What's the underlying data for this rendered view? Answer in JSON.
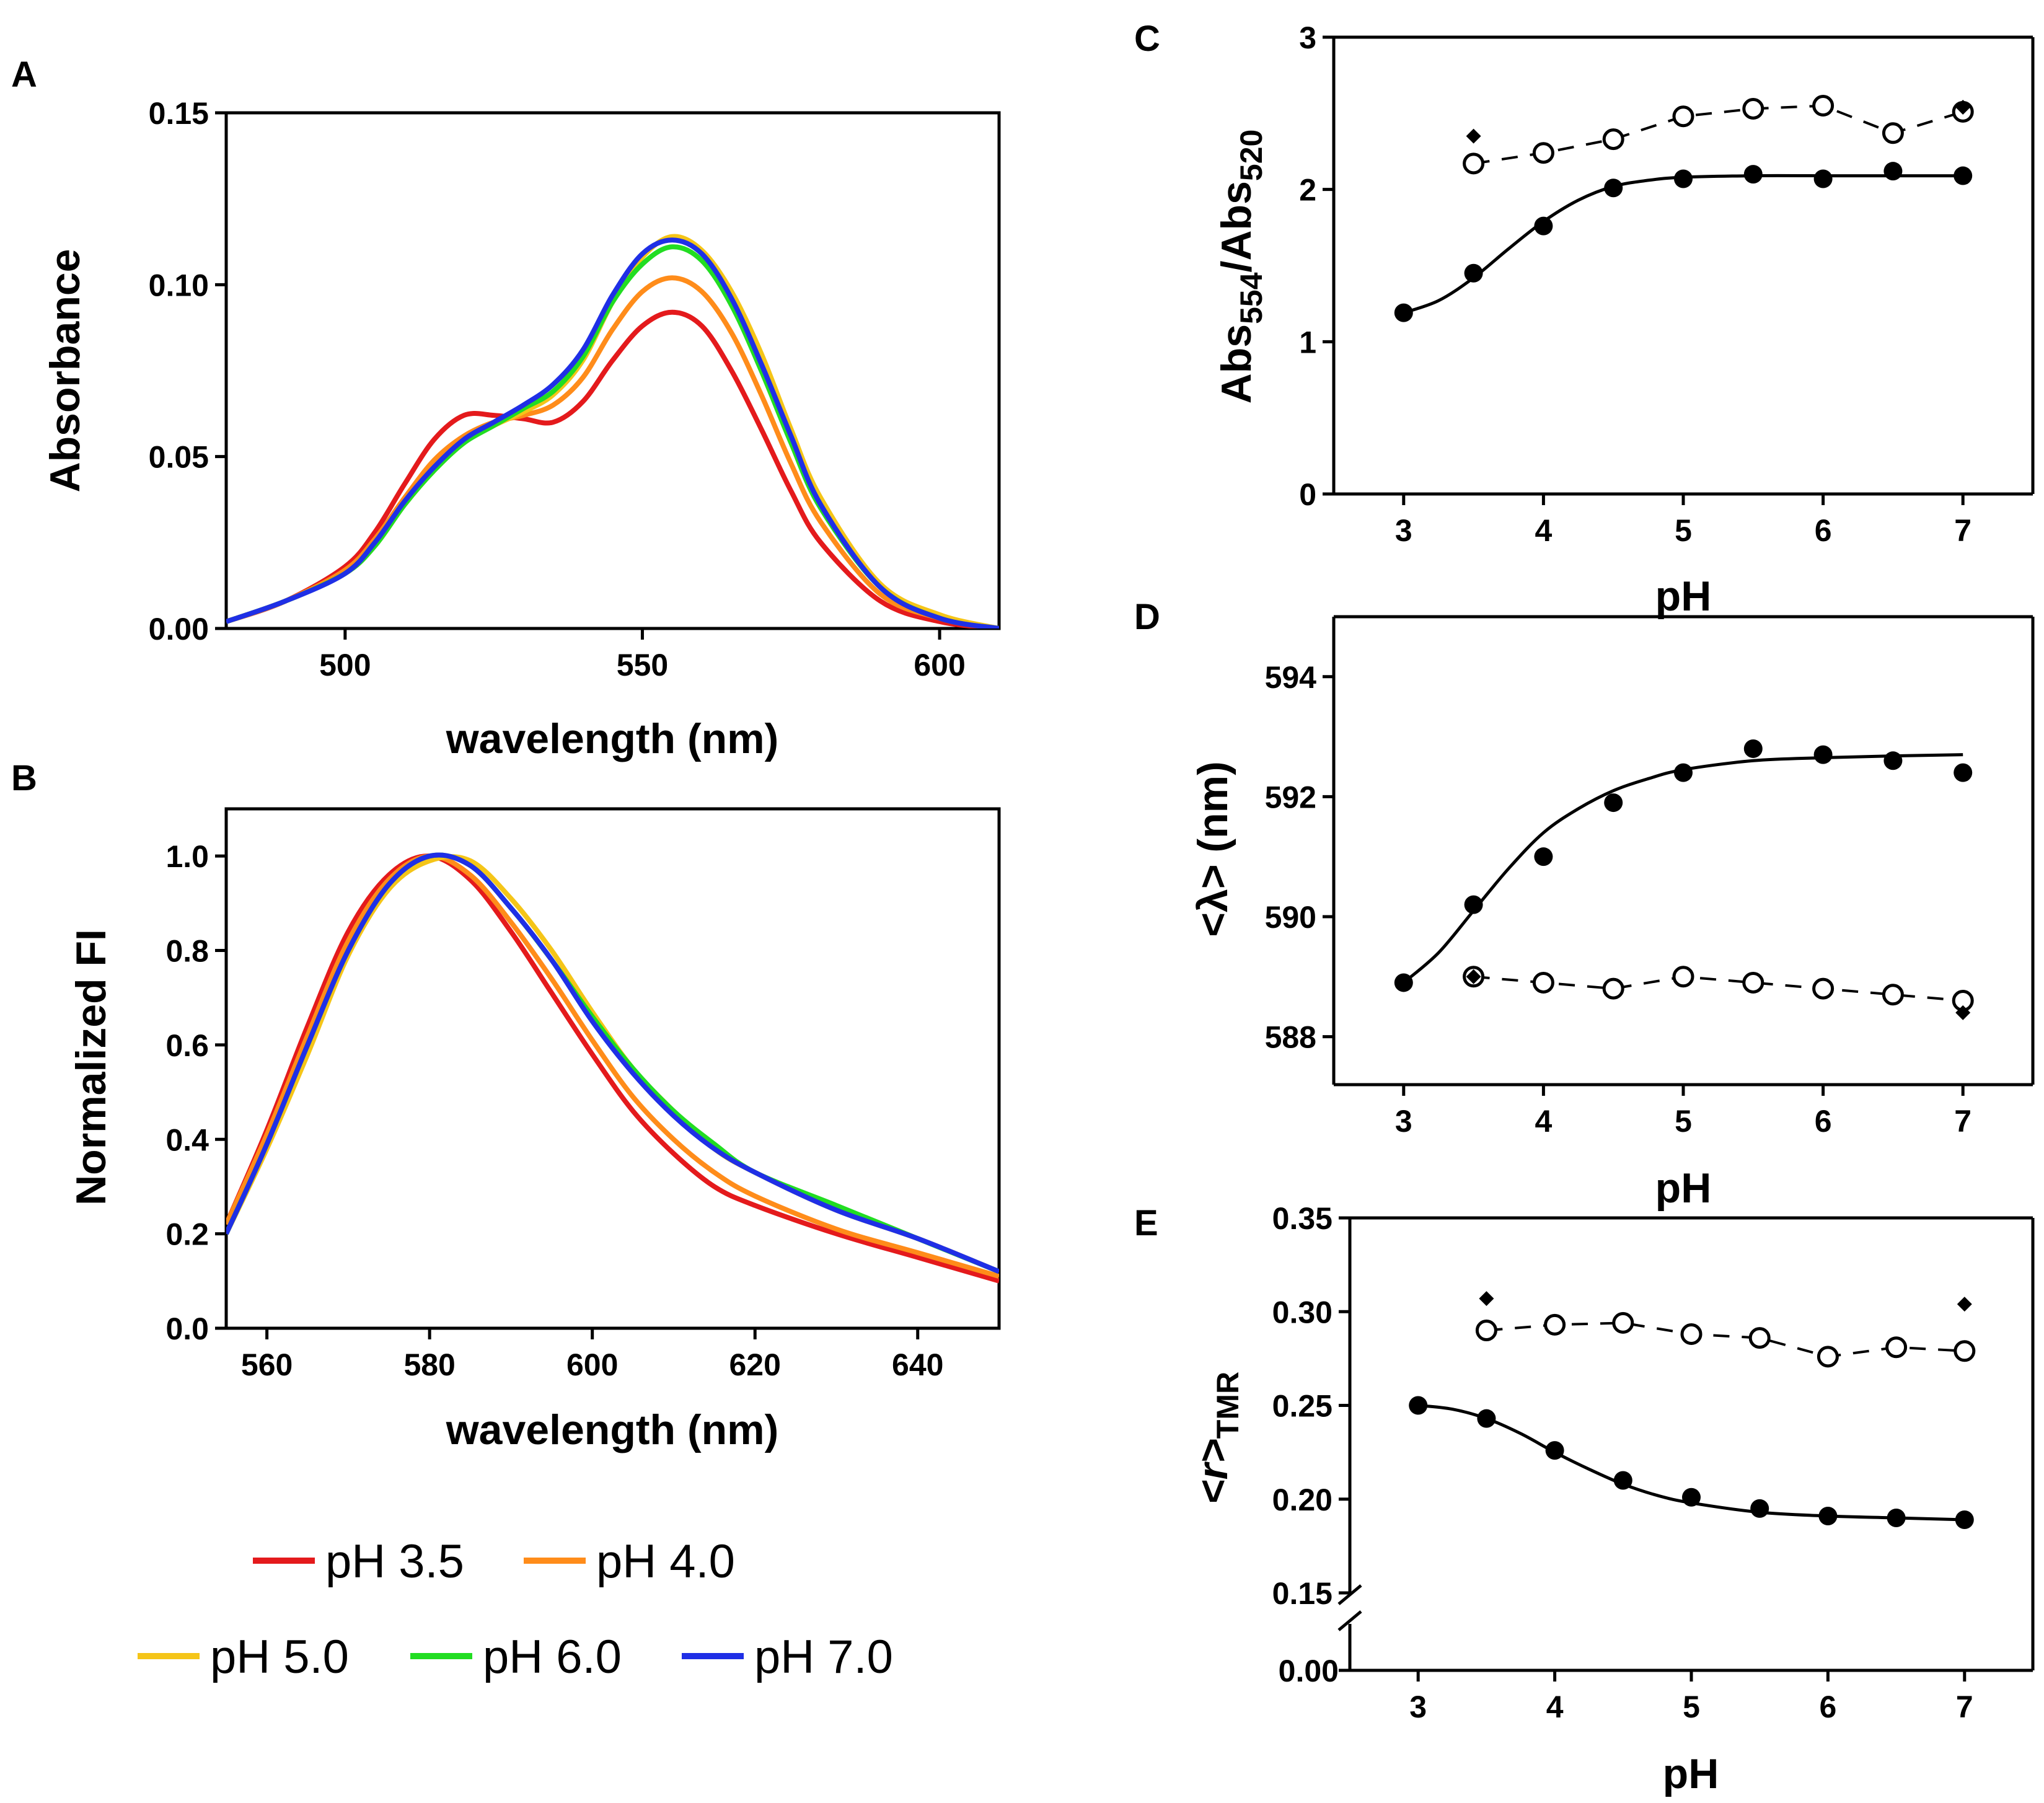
{
  "chart_data": [
    {
      "id": "A",
      "panel_label": "A",
      "type": "line",
      "xlabel": "wavelength (nm)",
      "ylabel": "Absorbance",
      "xlim": [
        480,
        610
      ],
      "ylim": [
        0,
        0.15
      ],
      "xticks": [
        500,
        550,
        600
      ],
      "xtick_labels": [
        "500",
        "550",
        "600"
      ],
      "yticks": [
        0,
        0.05,
        0.1,
        0.15
      ],
      "ytick_labels": [
        "0.00",
        "0.05",
        "0.10",
        "0.15"
      ],
      "series": [
        {
          "name": "pH 3.5",
          "color": "#e41a1c",
          "x": [
            480,
            490,
            500,
            505,
            510,
            515,
            520,
            525,
            530,
            535,
            540,
            545,
            550,
            555,
            560,
            565,
            570,
            575,
            580,
            590,
            600,
            610
          ],
          "y": [
            0.002,
            0.008,
            0.018,
            0.028,
            0.042,
            0.055,
            0.062,
            0.062,
            0.061,
            0.06,
            0.066,
            0.078,
            0.088,
            0.092,
            0.088,
            0.075,
            0.058,
            0.04,
            0.025,
            0.008,
            0.002,
            0.0
          ]
        },
        {
          "name": "pH 4.0",
          "color": "#ff8c1a",
          "x": [
            480,
            490,
            500,
            505,
            510,
            515,
            520,
            525,
            530,
            535,
            540,
            545,
            550,
            555,
            560,
            565,
            570,
            575,
            580,
            590,
            600,
            610
          ],
          "y": [
            0.002,
            0.008,
            0.017,
            0.026,
            0.038,
            0.049,
            0.056,
            0.06,
            0.062,
            0.065,
            0.073,
            0.087,
            0.098,
            0.102,
            0.098,
            0.086,
            0.068,
            0.048,
            0.031,
            0.01,
            0.003,
            0.0
          ]
        },
        {
          "name": "pH 5.0",
          "color": "#f5c518",
          "x": [
            480,
            490,
            500,
            505,
            510,
            515,
            520,
            525,
            530,
            535,
            540,
            545,
            550,
            555,
            560,
            565,
            570,
            575,
            580,
            590,
            600,
            610
          ],
          "y": [
            0.002,
            0.008,
            0.016,
            0.024,
            0.036,
            0.046,
            0.054,
            0.059,
            0.063,
            0.068,
            0.078,
            0.095,
            0.108,
            0.114,
            0.11,
            0.098,
            0.08,
            0.058,
            0.038,
            0.013,
            0.004,
            0.0
          ]
        },
        {
          "name": "pH 6.0",
          "color": "#22dd22",
          "x": [
            480,
            490,
            500,
            505,
            510,
            515,
            520,
            525,
            530,
            535,
            540,
            545,
            550,
            555,
            560,
            565,
            570,
            575,
            580,
            590,
            600,
            610
          ],
          "y": [
            0.002,
            0.008,
            0.016,
            0.024,
            0.036,
            0.046,
            0.054,
            0.059,
            0.064,
            0.069,
            0.079,
            0.095,
            0.106,
            0.111,
            0.107,
            0.094,
            0.075,
            0.054,
            0.035,
            0.012,
            0.003,
            0.0
          ]
        },
        {
          "name": "pH 7.0",
          "color": "#1f2fe6",
          "x": [
            480,
            490,
            500,
            505,
            510,
            515,
            520,
            525,
            530,
            535,
            540,
            545,
            550,
            555,
            560,
            565,
            570,
            575,
            580,
            590,
            600,
            610
          ],
          "y": [
            0.002,
            0.008,
            0.016,
            0.025,
            0.037,
            0.047,
            0.055,
            0.06,
            0.065,
            0.071,
            0.081,
            0.097,
            0.109,
            0.113,
            0.109,
            0.096,
            0.077,
            0.056,
            0.036,
            0.012,
            0.003,
            0.0
          ]
        }
      ]
    },
    {
      "id": "B",
      "panel_label": "B",
      "type": "line",
      "xlabel": "wavelength (nm)",
      "ylabel": "Normalized FI",
      "xlim": [
        555,
        650
      ],
      "ylim": [
        0,
        1.1
      ],
      "xticks": [
        560,
        580,
        600,
        620,
        640
      ],
      "xtick_labels": [
        "560",
        "580",
        "600",
        "620",
        "640"
      ],
      "yticks": [
        0,
        0.2,
        0.4,
        0.6,
        0.8,
        1.0
      ],
      "ytick_labels": [
        "0.0",
        "0.2",
        "0.4",
        "0.6",
        "0.8",
        "1.0"
      ],
      "series": [
        {
          "name": "pH 3.5",
          "color": "#e41a1c",
          "x": [
            555,
            560,
            565,
            570,
            575,
            580,
            585,
            590,
            595,
            600,
            605,
            610,
            615,
            620,
            630,
            640,
            650
          ],
          "y": [
            0.22,
            0.42,
            0.64,
            0.84,
            0.96,
            1.0,
            0.95,
            0.84,
            0.71,
            0.58,
            0.46,
            0.37,
            0.3,
            0.26,
            0.2,
            0.15,
            0.1
          ]
        },
        {
          "name": "pH 4.0",
          "color": "#ff8c1a",
          "x": [
            555,
            560,
            565,
            570,
            575,
            580,
            585,
            590,
            595,
            600,
            605,
            610,
            615,
            620,
            630,
            640,
            650
          ],
          "y": [
            0.22,
            0.41,
            0.62,
            0.82,
            0.95,
            1.0,
            0.96,
            0.86,
            0.74,
            0.61,
            0.49,
            0.4,
            0.33,
            0.28,
            0.21,
            0.16,
            0.11
          ]
        },
        {
          "name": "pH 5.0",
          "color": "#f5c518",
          "x": [
            555,
            560,
            565,
            570,
            575,
            580,
            585,
            590,
            595,
            600,
            605,
            610,
            615,
            620,
            630,
            640,
            650
          ],
          "y": [
            0.2,
            0.38,
            0.58,
            0.79,
            0.93,
            0.99,
            0.99,
            0.91,
            0.8,
            0.67,
            0.55,
            0.46,
            0.38,
            0.33,
            0.25,
            0.19,
            0.12
          ]
        },
        {
          "name": "pH 6.0",
          "color": "#22dd22",
          "x": [
            555,
            560,
            565,
            570,
            575,
            580,
            585,
            590,
            595,
            600,
            605,
            610,
            615,
            620,
            630,
            640,
            650
          ],
          "y": [
            0.2,
            0.39,
            0.6,
            0.8,
            0.94,
            1.0,
            0.98,
            0.89,
            0.78,
            0.66,
            0.55,
            0.46,
            0.39,
            0.33,
            0.26,
            0.19,
            0.12
          ]
        },
        {
          "name": "pH 7.0",
          "color": "#1f2fe6",
          "x": [
            555,
            560,
            565,
            570,
            575,
            580,
            585,
            590,
            595,
            600,
            605,
            610,
            615,
            620,
            630,
            640,
            650
          ],
          "y": [
            0.2,
            0.39,
            0.6,
            0.8,
            0.94,
            1.0,
            0.98,
            0.89,
            0.78,
            0.65,
            0.54,
            0.45,
            0.38,
            0.33,
            0.25,
            0.19,
            0.12
          ]
        }
      ]
    },
    {
      "id": "C",
      "panel_label": "C",
      "type": "scatter",
      "xlabel": "pH",
      "ylabel_main": "Abs",
      "ylabel_sub1": "554",
      "ylabel_mid": "/Abs",
      "ylabel_sub2": "520",
      "xlim": [
        2.5,
        7.5
      ],
      "ylim": [
        0,
        3
      ],
      "xticks": [
        3,
        4,
        5,
        6,
        7
      ],
      "xtick_labels": [
        "3",
        "4",
        "5",
        "6",
        "7"
      ],
      "yticks": [
        0,
        1,
        2,
        3
      ],
      "ytick_labels": [
        "0",
        "1",
        "2",
        "3"
      ],
      "filled": {
        "x": [
          3,
          3.5,
          4,
          4.5,
          5,
          5.5,
          6,
          6.5,
          7
        ],
        "y": [
          1.19,
          1.45,
          1.76,
          2.01,
          2.07,
          2.1,
          2.07,
          2.12,
          2.09
        ]
      },
      "open": {
        "x": [
          3.5,
          4,
          4.5,
          5,
          5.5,
          6,
          6.5,
          7
        ],
        "y": [
          2.17,
          2.24,
          2.33,
          2.48,
          2.53,
          2.55,
          2.37,
          2.51
        ]
      },
      "diamond": {
        "x": [
          3.5,
          7
        ],
        "y": [
          2.35,
          2.54
        ]
      },
      "fit": {
        "x": [
          3,
          3.25,
          3.5,
          3.75,
          4,
          4.25,
          4.5,
          4.75,
          5,
          5.5,
          6,
          6.5,
          7
        ],
        "y": [
          1.19,
          1.27,
          1.42,
          1.61,
          1.79,
          1.93,
          2.02,
          2.06,
          2.08,
          2.09,
          2.09,
          2.09,
          2.09
        ]
      }
    },
    {
      "id": "D",
      "panel_label": "D",
      "type": "scatter",
      "xlabel": "pH",
      "ylabel": "<λ> (nm)",
      "xlim": [
        2.5,
        7.5
      ],
      "ylim": [
        587.2,
        595
      ],
      "xticks": [
        3,
        4,
        5,
        6,
        7
      ],
      "xtick_labels": [
        "3",
        "4",
        "5",
        "6",
        "7"
      ],
      "yticks": [
        588,
        590,
        592,
        594
      ],
      "ytick_labels": [
        "588",
        "590",
        "592",
        "594"
      ],
      "filled": {
        "x": [
          3,
          3.5,
          4,
          4.5,
          5,
          5.5,
          6,
          6.5,
          7
        ],
        "y": [
          588.9,
          590.2,
          591.0,
          591.9,
          592.4,
          592.8,
          592.7,
          592.6,
          592.4
        ]
      },
      "open": {
        "x": [
          3.5,
          4,
          4.5,
          5,
          5.5,
          6,
          6.5,
          7
        ],
        "y": [
          589.0,
          588.9,
          588.8,
          589.0,
          588.9,
          588.8,
          588.7,
          588.6
        ]
      },
      "diamond": {
        "x": [
          3.5,
          7
        ],
        "y": [
          589.0,
          588.4
        ]
      },
      "fit": {
        "x": [
          3,
          3.25,
          3.5,
          3.75,
          4,
          4.25,
          4.5,
          4.75,
          5,
          5.5,
          6,
          6.5,
          7
        ],
        "y": [
          588.9,
          589.4,
          590.1,
          590.8,
          591.4,
          591.8,
          592.1,
          592.3,
          592.45,
          592.6,
          592.65,
          592.68,
          592.7
        ]
      }
    },
    {
      "id": "E",
      "panel_label": "E",
      "type": "scatter",
      "xlabel": "pH",
      "ylabel_main": "<r>",
      "ylabel_sub": "TMR",
      "xlim": [
        2.5,
        7.5
      ],
      "ylim": [
        0.15,
        0.35
      ],
      "axis_break": true,
      "xticks": [
        3,
        4,
        5,
        6,
        7
      ],
      "xtick_labels": [
        "3",
        "4",
        "5",
        "6",
        "7"
      ],
      "yticks": [
        0.15,
        0.2,
        0.25,
        0.3,
        0.35
      ],
      "ytick_labels": [
        "0.15",
        "0.20",
        "0.25",
        "0.30",
        "0.35"
      ],
      "ybreak_label": "0.00",
      "filled": {
        "x": [
          3,
          3.5,
          4,
          4.5,
          5,
          5.5,
          6,
          6.5,
          7
        ],
        "y": [
          0.25,
          0.243,
          0.226,
          0.21,
          0.201,
          0.195,
          0.191,
          0.19,
          0.189
        ]
      },
      "open": {
        "x": [
          3.5,
          4,
          4.5,
          5,
          5.5,
          6,
          6.5,
          7
        ],
        "y": [
          0.29,
          0.293,
          0.294,
          0.288,
          0.286,
          0.276,
          0.281,
          0.279
        ]
      },
      "diamond": {
        "x": [
          3.5,
          7
        ],
        "y": [
          0.307,
          0.304
        ]
      },
      "fit": {
        "x": [
          3,
          3.25,
          3.5,
          3.75,
          4,
          4.25,
          4.5,
          4.75,
          5,
          5.5,
          6,
          6.5,
          7
        ],
        "y": [
          0.25,
          0.248,
          0.243,
          0.235,
          0.225,
          0.216,
          0.208,
          0.202,
          0.198,
          0.193,
          0.191,
          0.19,
          0.189
        ]
      }
    }
  ],
  "legend": {
    "items": [
      {
        "label": "pH 3.5",
        "color": "#e41a1c"
      },
      {
        "label": "pH 4.0",
        "color": "#ff8c1a"
      },
      {
        "label": "pH 5.0",
        "color": "#f5c518"
      },
      {
        "label": "pH 6.0",
        "color": "#22dd22"
      },
      {
        "label": "pH 7.0",
        "color": "#1f2fe6"
      }
    ]
  }
}
